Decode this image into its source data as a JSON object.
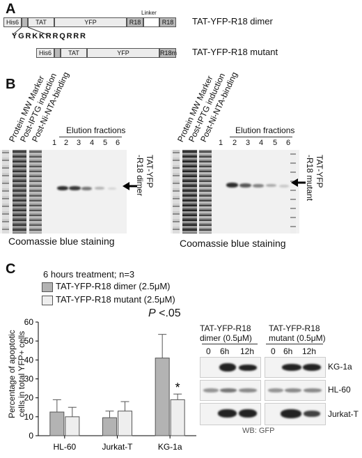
{
  "panel_a": {
    "label": "A",
    "dimer": {
      "segments": [
        "His6",
        "TAT",
        "YFP",
        "R18",
        "R18"
      ],
      "linker_label": "Linker",
      "sequence": "YGRKKRRQRRR",
      "name": "TAT-YFP-R18 dimer"
    },
    "mutant": {
      "segments": [
        "His6",
        "TAT",
        "YFP",
        "R18m"
      ],
      "name": "TAT-YFP-R18 mutant"
    }
  },
  "panel_b": {
    "label": "B",
    "gels": [
      {
        "column_labels": [
          "Protein MW Marker",
          "Post-IPTG induction",
          "Post-Ni-NTA-binding"
        ],
        "elution_label": "Elution fractions",
        "lanes": [
          "1",
          "2",
          "3",
          "4",
          "5",
          "6"
        ],
        "band_label_line1": "TAT-YFP",
        "band_label_line2": "-R18 dimer",
        "caption": "Coomassie blue staining"
      },
      {
        "column_labels": [
          "Protein MW Marker",
          "Post-IPTG induction",
          "Post-Ni-NTA-binding"
        ],
        "elution_label": "Elution fractions",
        "lanes": [
          "1",
          "2",
          "3",
          "4",
          "5",
          "6"
        ],
        "band_label_line1": "TAT-YFP",
        "band_label_line2": "-R18 mutant",
        "caption": "Coomassie blue staining"
      }
    ]
  },
  "panel_c": {
    "label": "C",
    "condition": "6 hours treatment; n=3",
    "legend": [
      {
        "name": "TAT-YFP-R18 dimer (2.5μM)",
        "color": "#b3b3b3"
      },
      {
        "name": "TAT-YFP-R18 mutant (2.5μM)",
        "color": "#eeeeee"
      }
    ],
    "significance": {
      "p_prefix": "P",
      "p_text": " <.05",
      "asterisk": "*"
    },
    "blot": {
      "col1_title_line1": "TAT-YFP-R18",
      "col1_title_line2": "dimer (0.5μM)",
      "col2_title_line1": "TAT-YFP-R18",
      "col2_title_line2": "mutant (0.5μM)",
      "timepoints": [
        "0",
        "6h",
        "12h"
      ],
      "rows": [
        "KG-1a",
        "HL-60",
        "Jurkat-T"
      ],
      "footer": "WB: GFP"
    }
  },
  "chart_data": {
    "type": "bar",
    "categories": [
      "HL-60",
      "Jurkat-T",
      "KG-1a"
    ],
    "series": [
      {
        "name": "TAT-YFP-R18 dimer (2.5μM)",
        "values": [
          12.5,
          9.5,
          41
        ],
        "errors": [
          6.5,
          3.5,
          12.5
        ]
      },
      {
        "name": "TAT-YFP-R18 mutant (2.5μM)",
        "values": [
          10,
          13,
          19
        ],
        "errors": [
          5,
          5,
          3
        ]
      }
    ],
    "ylabel_line1": "Percentage of apoptotic",
    "ylabel_line2": "cells in total YFP+ cells",
    "ylim": [
      0,
      60
    ],
    "yticks": [
      "0",
      "10",
      "20",
      "30",
      "40",
      "50",
      "60"
    ]
  }
}
